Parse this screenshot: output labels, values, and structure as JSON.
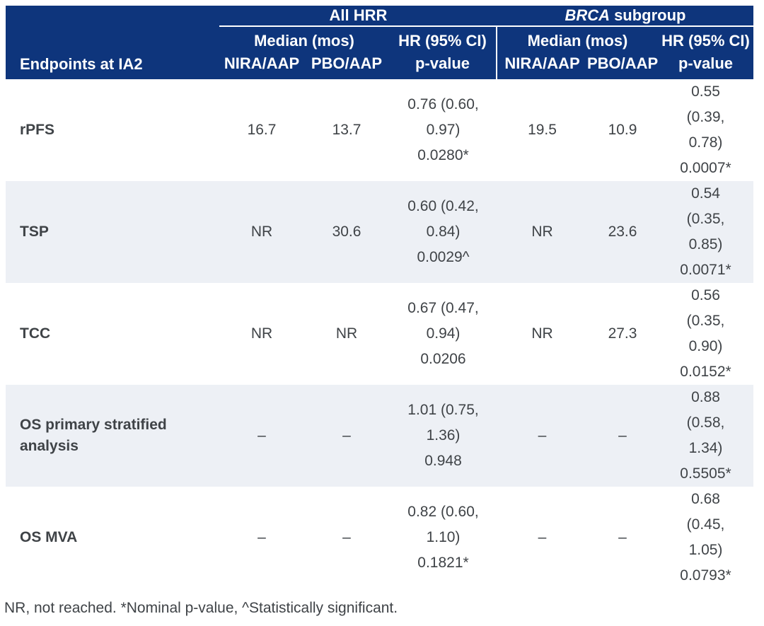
{
  "colors": {
    "header_bg": "#0e357c",
    "shaded_row": "#edf0f5",
    "body_text": "#3f4347",
    "header_text": "#ffffff"
  },
  "header": {
    "corner": "Endpoints at IA2",
    "group_all": "All HRR",
    "group_brca_italic": "BRCA",
    "group_brca_rest": "subgroup",
    "median": "Median (mos)",
    "hr_ci": "HR (95% CI)",
    "nira": "NIRA/AAP",
    "pbo": "PBO/AAP",
    "pvalue": "p-value"
  },
  "rows": [
    {
      "endpoint": "rPFS",
      "all": {
        "nira": "16.7",
        "pbo": "13.7",
        "hr": "0.76 (0.60,\n0.97)\n0.0280*"
      },
      "brca": {
        "nira": "19.5",
        "pbo": "10.9",
        "hr": "0.55\n(0.39,\n0.78)\n0.0007*"
      }
    },
    {
      "endpoint": "TSP",
      "all": {
        "nira": "NR",
        "pbo": "30.6",
        "hr": "0.60 (0.42,\n0.84)\n0.0029^"
      },
      "brca": {
        "nira": "NR",
        "pbo": "23.6",
        "hr": "0.54\n(0.35,\n0.85)\n0.0071*"
      }
    },
    {
      "endpoint": "TCC",
      "all": {
        "nira": "NR",
        "pbo": "NR",
        "hr": "0.67 (0.47,\n0.94)\n0.0206"
      },
      "brca": {
        "nira": "NR",
        "pbo": "27.3",
        "hr": "0.56\n(0.35,\n0.90)\n0.0152*"
      }
    },
    {
      "endpoint": "OS primary stratified\nanalysis",
      "all": {
        "nira": "–",
        "pbo": "–",
        "hr": "1.01 (0.75,\n1.36)\n0.948"
      },
      "brca": {
        "nira": "–",
        "pbo": "–",
        "hr": "0.88\n(0.58,\n1.34)\n0.5505*"
      }
    },
    {
      "endpoint": "OS MVA",
      "all": {
        "nira": "–",
        "pbo": "–",
        "hr": "0.82 (0.60,\n1.10)\n0.1821*"
      },
      "brca": {
        "nira": "–",
        "pbo": "–",
        "hr": "0.68\n(0.45,\n1.05)\n0.0793*"
      }
    }
  ],
  "footnote": "NR, not reached. *Nominal p-value, ^Statistically significant."
}
